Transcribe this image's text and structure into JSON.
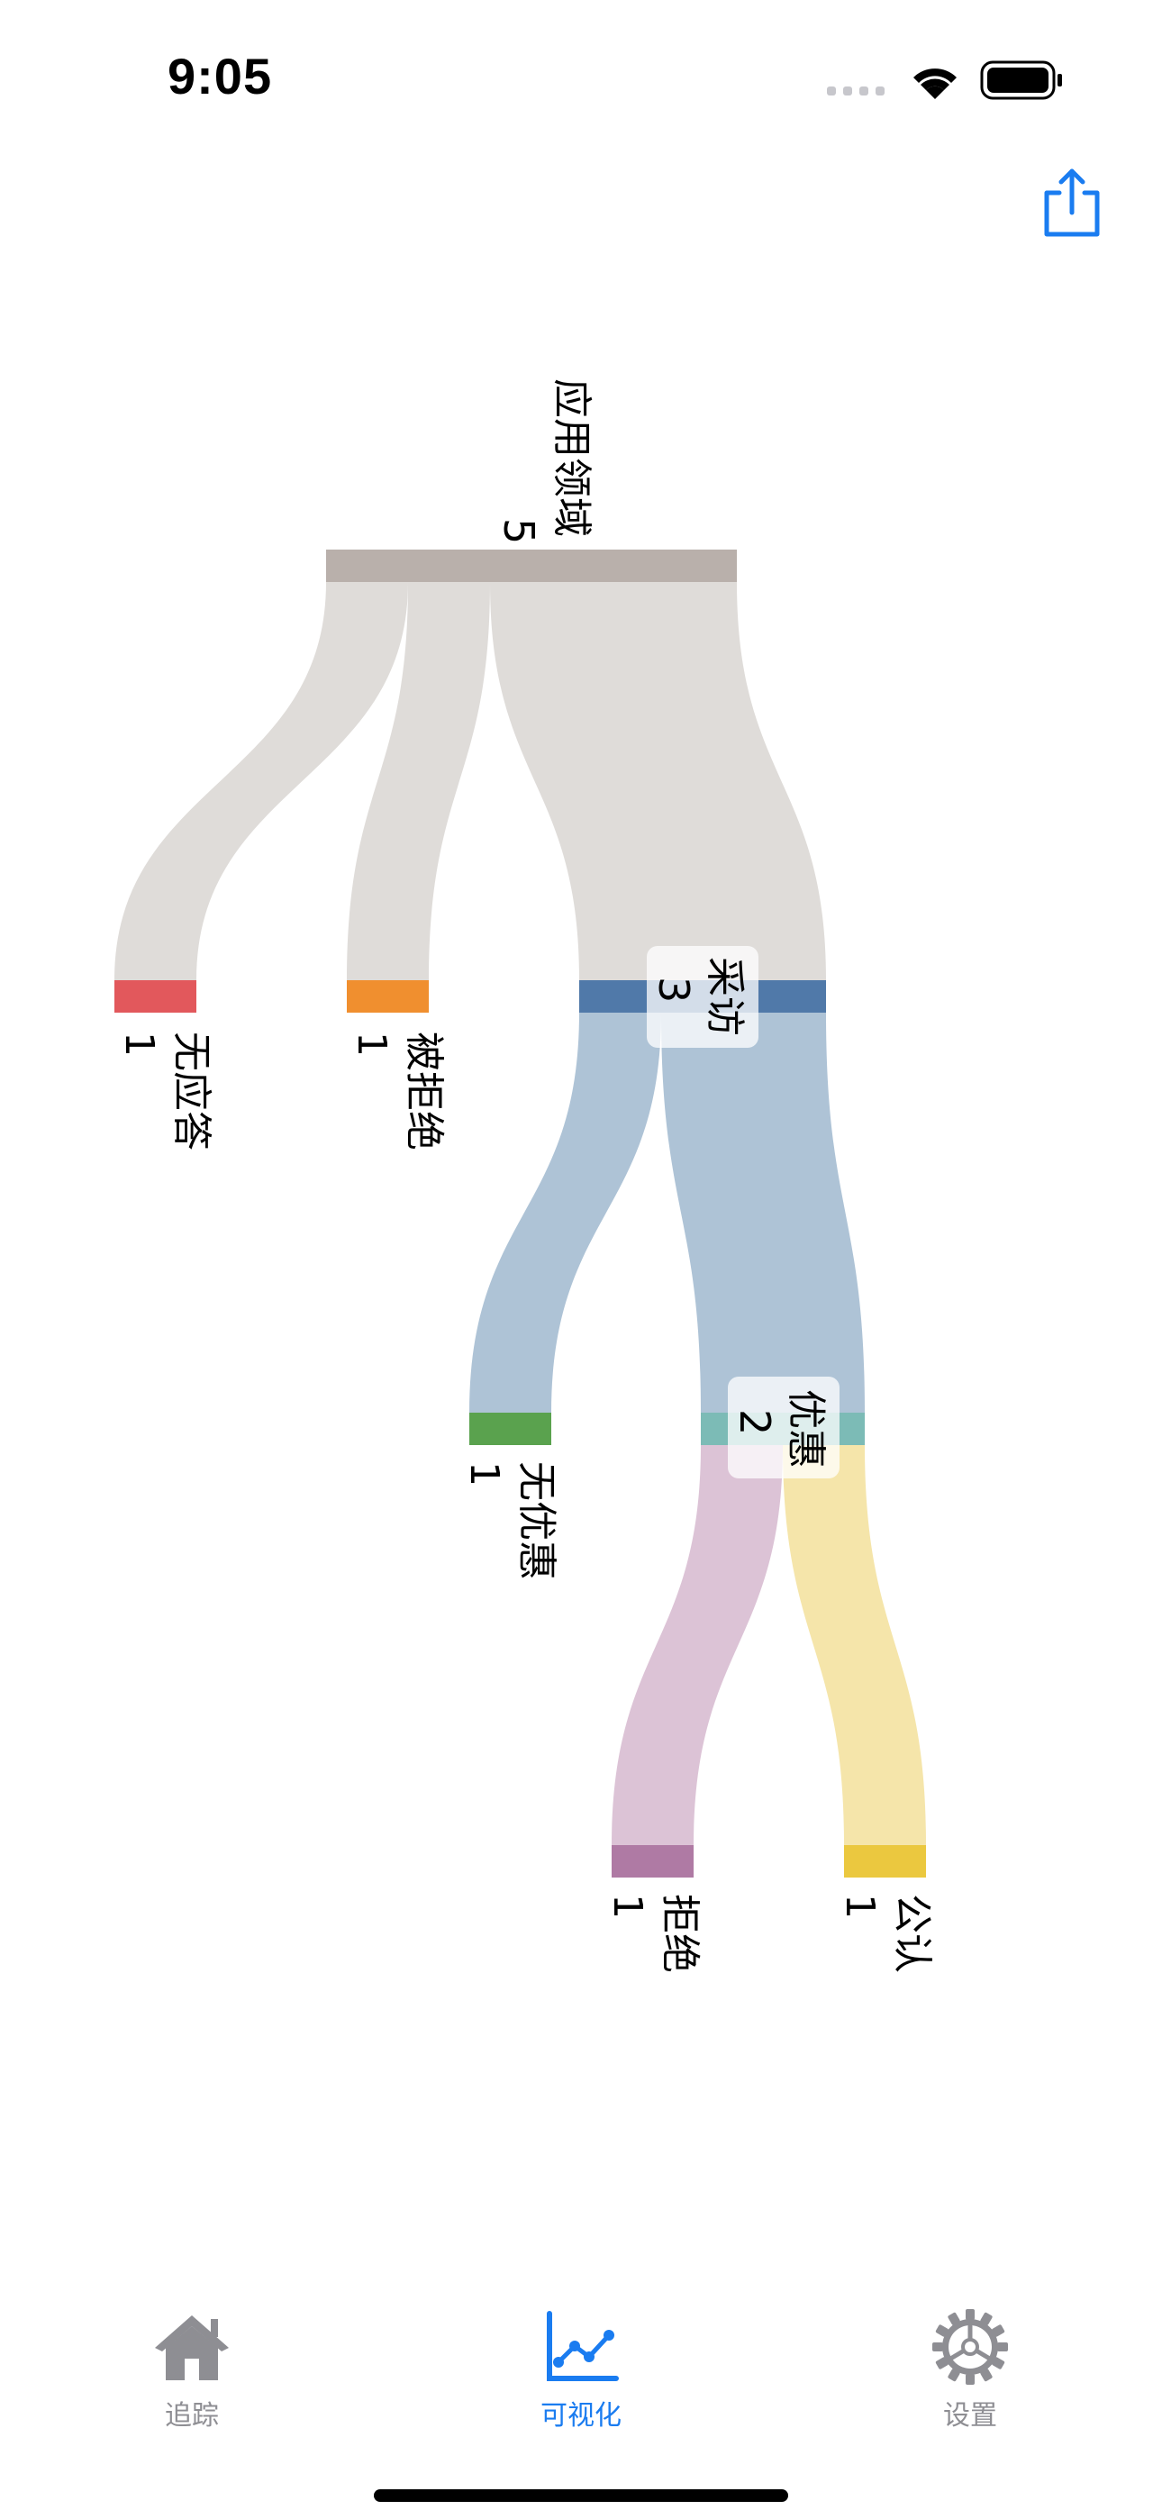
{
  "status_bar": {
    "time": "9:05"
  },
  "colors": {
    "accent": "#1a7cf0",
    "tab_inactive": "#8e8e93",
    "link": "#dfdcd9",
    "root_node": "#b9b0ab",
    "node_caifang": "#5079a9",
    "node_youhui": "#7cbbb6",
    "node_wuyingda": "#e2585c",
    "node_beijujue": "#f08f2f",
    "node_wuyouhui": "#5aa24e",
    "node_jujue": "#af7aa4",
    "node_gongren": "#ebc83f"
  },
  "header": {
    "share_icon": "share-icon"
  },
  "sankey": {
    "root": {
      "label": "应用领域",
      "value": "5"
    },
    "stage": {
      "label": "采访",
      "value": "3"
    },
    "offer": {
      "label": "优惠",
      "value": "2"
    },
    "leaves": {
      "no_response": {
        "label": "无应答",
        "value": "1"
      },
      "rejected": {
        "label": "被拒绝",
        "value": "1"
      },
      "no_offer": {
        "label": "无优惠",
        "value": "1"
      },
      "declined": {
        "label": "拒绝",
        "value": "1"
      },
      "accepted": {
        "label": "公认",
        "value": "1"
      }
    }
  },
  "chart_data": {
    "type": "sankey",
    "nodes": [
      "应用领域",
      "无应答",
      "被拒绝",
      "采访",
      "无优惠",
      "优惠",
      "拒绝",
      "公认"
    ],
    "links": [
      {
        "source": "应用领域",
        "target": "无应答",
        "value": 1
      },
      {
        "source": "应用领域",
        "target": "被拒绝",
        "value": 1
      },
      {
        "source": "应用领域",
        "target": "采访",
        "value": 3
      },
      {
        "source": "采访",
        "target": "无优惠",
        "value": 1
      },
      {
        "source": "采访",
        "target": "优惠",
        "value": 2
      },
      {
        "source": "优惠",
        "target": "拒绝",
        "value": 1
      },
      {
        "source": "优惠",
        "target": "公认",
        "value": 1
      }
    ]
  },
  "tabs": [
    {
      "label": "追踪",
      "icon": "house-icon",
      "selected": false
    },
    {
      "label": "可视化",
      "icon": "chart-line-icon",
      "selected": true
    },
    {
      "label": "设置",
      "icon": "gear-icon",
      "selected": false
    }
  ]
}
